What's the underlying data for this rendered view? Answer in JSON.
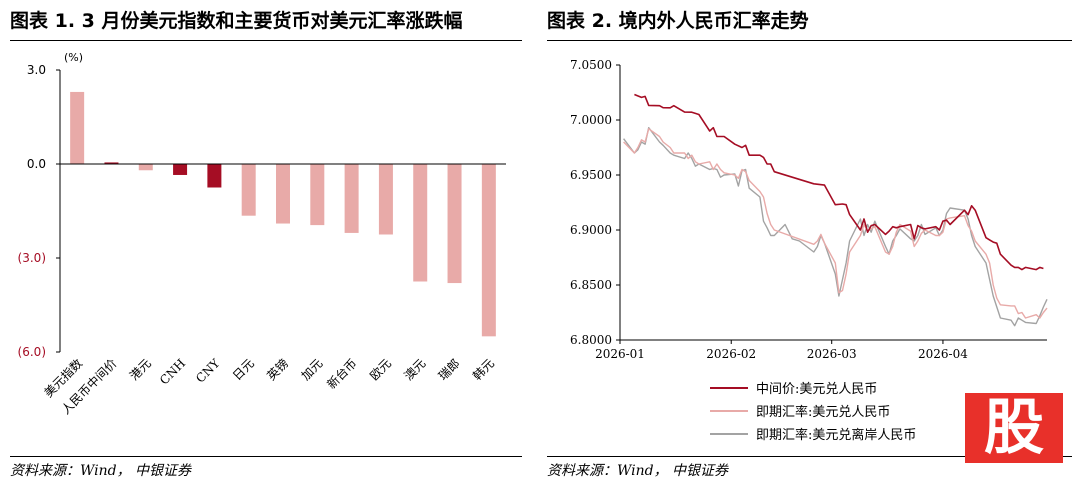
{
  "left_panel": {
    "title": "图表 1. 3 月份美元指数和主要货币对美元汇率涨跌幅",
    "source": "资料来源：Wind， 中银证券"
  },
  "right_panel": {
    "title": "图表 2. 境内外人民币汇率走势",
    "source": "资料来源：Wind， 中银证券"
  },
  "watermark": "股",
  "colors": {
    "dark_red": "#a50d24",
    "light_pink": "#e8aaa8",
    "grey": "#a3a3a3",
    "axis": "#000000"
  },
  "chart_data": [
    {
      "type": "bar",
      "unit_label": "(%)",
      "categories": [
        "美元指数",
        "人民币中间价",
        "港元",
        "CNH",
        "CNY",
        "日元",
        "英镑",
        "加元",
        "新台币",
        "欧元",
        "澳元",
        "瑞郎",
        "韩元"
      ],
      "values": [
        2.3,
        0.05,
        -0.2,
        -0.35,
        -0.75,
        -1.65,
        -1.9,
        -1.95,
        -2.2,
        -2.25,
        -3.75,
        -3.8,
        -5.5
      ],
      "bar_colors": [
        "light",
        "dark",
        "light",
        "dark",
        "dark",
        "light",
        "light",
        "light",
        "light",
        "light",
        "light",
        "light",
        "light"
      ],
      "yticks": [
        3.0,
        0.0,
        -3.0,
        -6.0
      ],
      "ytick_labels": [
        "3.0",
        "0.0",
        "(3.0)",
        "(6.0)"
      ],
      "ylim": [
        -6.0,
        3.0
      ]
    },
    {
      "type": "line",
      "xticks": [
        "2026-01",
        "2026-02",
        "2026-03",
        "2026-04"
      ],
      "xlim": [
        "2026-01-01",
        "2026-04-30"
      ],
      "yticks": [
        6.8,
        6.85,
        6.9,
        6.95,
        7.0,
        7.05
      ],
      "ytick_labels": [
        "6.8000",
        "6.8500",
        "6.9000",
        "6.9500",
        "7.0000",
        "7.0500"
      ],
      "ylim": [
        6.8,
        7.05
      ],
      "series": [
        {
          "name": "中间价:美元兑人民币",
          "color": "dark_red",
          "points": [
            [
              "2026-01-05",
              7.0232
            ],
            [
              "2026-01-07",
              7.0205
            ],
            [
              "2026-01-08",
              7.0215
            ],
            [
              "2026-01-09",
              7.0133
            ],
            [
              "2026-01-12",
              7.013
            ],
            [
              "2026-01-13",
              7.0112
            ],
            [
              "2026-01-15",
              7.0111
            ],
            [
              "2026-01-16",
              7.013
            ],
            [
              "2026-01-19",
              7.0072
            ],
            [
              "2026-01-21",
              7.0071
            ],
            [
              "2026-01-22",
              7.006
            ],
            [
              "2026-01-23",
              7.005
            ],
            [
              "2026-01-26",
              6.99
            ],
            [
              "2026-01-27",
              6.993
            ],
            [
              "2026-01-28",
              6.985
            ],
            [
              "2026-01-30",
              6.985
            ],
            [
              "2026-02-02",
              6.978
            ],
            [
              "2026-02-04",
              6.975
            ],
            [
              "2026-02-05",
              6.977
            ],
            [
              "2026-02-06",
              6.968
            ],
            [
              "2026-02-09",
              6.968
            ],
            [
              "2026-02-10",
              6.966
            ],
            [
              "2026-02-11",
              6.96
            ],
            [
              "2026-02-12",
              6.96
            ],
            [
              "2026-02-13",
              6.953
            ],
            [
              "2026-02-24",
              6.942
            ],
            [
              "2026-02-27",
              6.9408
            ],
            [
              "2026-03-02",
              6.923
            ],
            [
              "2026-03-04",
              6.9236
            ],
            [
              "2026-03-05",
              6.923
            ],
            [
              "2026-03-06",
              6.914
            ],
            [
              "2026-03-09",
              6.9
            ],
            [
              "2026-03-10",
              6.91
            ],
            [
              "2026-03-11",
              6.898
            ],
            [
              "2026-03-12",
              6.904
            ],
            [
              "2026-03-13",
              6.905
            ],
            [
              "2026-03-16",
              6.896
            ],
            [
              "2026-03-17",
              6.899
            ],
            [
              "2026-03-18",
              6.903
            ],
            [
              "2026-03-19",
              6.902
            ],
            [
              "2026-03-20",
              6.903
            ],
            [
              "2026-03-23",
              6.905
            ],
            [
              "2026-03-24",
              6.892
            ],
            [
              "2026-03-25",
              6.904
            ],
            [
              "2026-03-26",
              6.902
            ],
            [
              "2026-03-27",
              6.901
            ],
            [
              "2026-03-30",
              6.903
            ],
            [
              "2026-03-31",
              6.9
            ],
            [
              "2026-04-01",
              6.908
            ],
            [
              "2026-04-02",
              6.909
            ],
            [
              "2026-04-03",
              6.905
            ],
            [
              "2026-04-07",
              6.918
            ],
            [
              "2026-04-08",
              6.914
            ],
            [
              "2026-04-09",
              6.922
            ],
            [
              "2026-04-10",
              6.918
            ],
            [
              "2026-04-13",
              6.893
            ],
            [
              "2026-04-14",
              6.891
            ],
            [
              "2026-04-15",
              6.889
            ],
            [
              "2026-04-16",
              6.888
            ],
            [
              "2026-04-17",
              6.878
            ],
            [
              "2026-04-20",
              6.868
            ],
            [
              "2026-04-21",
              6.866
            ],
            [
              "2026-04-22",
              6.866
            ],
            [
              "2026-04-23",
              6.864
            ],
            [
              "2026-04-24",
              6.866
            ],
            [
              "2026-04-27",
              6.864
            ],
            [
              "2026-04-28",
              6.866
            ],
            [
              "2026-04-29",
              6.865
            ]
          ]
        },
        {
          "name": "即期汇率:美元兑人民币",
          "color": "light_pink",
          "points": [
            [
              "2026-01-02",
              6.98
            ],
            [
              "2026-01-05",
              6.97
            ],
            [
              "2026-01-06",
              6.975
            ],
            [
              "2026-01-07",
              6.982
            ],
            [
              "2026-01-08",
              6.98
            ],
            [
              "2026-01-09",
              6.992
            ],
            [
              "2026-01-12",
              6.985
            ],
            [
              "2026-01-13",
              6.98
            ],
            [
              "2026-01-15",
              6.975
            ],
            [
              "2026-01-16",
              6.97
            ],
            [
              "2026-01-19",
              6.97
            ],
            [
              "2026-01-20",
              6.965
            ],
            [
              "2026-01-21",
              6.968
            ],
            [
              "2026-01-22",
              6.962
            ],
            [
              "2026-01-23",
              6.96
            ],
            [
              "2026-01-26",
              6.962
            ],
            [
              "2026-01-27",
              6.955
            ],
            [
              "2026-01-28",
              6.96
            ],
            [
              "2026-01-29",
              6.955
            ],
            [
              "2026-01-30",
              6.952
            ],
            [
              "2026-02-02",
              6.95
            ],
            [
              "2026-02-03",
              6.947
            ],
            [
              "2026-02-04",
              6.955
            ],
            [
              "2026-02-05",
              6.953
            ],
            [
              "2026-02-06",
              6.945
            ],
            [
              "2026-02-09",
              6.935
            ],
            [
              "2026-02-10",
              6.93
            ],
            [
              "2026-02-11",
              6.915
            ],
            [
              "2026-02-12",
              6.905
            ],
            [
              "2026-02-13",
              6.9
            ],
            [
              "2026-02-24",
              6.887
            ],
            [
              "2026-02-25",
              6.89
            ],
            [
              "2026-02-26",
              6.896
            ],
            [
              "2026-02-27",
              6.888
            ],
            [
              "2026-03-02",
              6.87
            ],
            [
              "2026-03-03",
              6.843
            ],
            [
              "2026-03-04",
              6.845
            ],
            [
              "2026-03-05",
              6.86
            ],
            [
              "2026-03-06",
              6.88
            ],
            [
              "2026-03-09",
              6.895
            ],
            [
              "2026-03-10",
              6.905
            ],
            [
              "2026-03-11",
              6.899
            ],
            [
              "2026-03-12",
              6.901
            ],
            [
              "2026-03-13",
              6.903
            ],
            [
              "2026-03-16",
              6.88
            ],
            [
              "2026-03-17",
              6.878
            ],
            [
              "2026-03-18",
              6.885
            ],
            [
              "2026-03-19",
              6.898
            ],
            [
              "2026-03-20",
              6.905
            ],
            [
              "2026-03-23",
              6.899
            ],
            [
              "2026-03-24",
              6.885
            ],
            [
              "2026-03-25",
              6.89
            ],
            [
              "2026-03-26",
              6.897
            ],
            [
              "2026-03-27",
              6.9
            ],
            [
              "2026-03-30",
              6.895
            ],
            [
              "2026-03-31",
              6.895
            ],
            [
              "2026-04-01",
              6.898
            ],
            [
              "2026-04-02",
              6.91
            ],
            [
              "2026-04-03",
              6.911
            ],
            [
              "2026-04-07",
              6.913
            ],
            [
              "2026-04-08",
              6.904
            ],
            [
              "2026-04-09",
              6.899
            ],
            [
              "2026-04-10",
              6.89
            ],
            [
              "2026-04-13",
              6.878
            ],
            [
              "2026-04-14",
              6.87
            ],
            [
              "2026-04-15",
              6.85
            ],
            [
              "2026-04-16",
              6.838
            ],
            [
              "2026-04-17",
              6.832
            ],
            [
              "2026-04-20",
              6.831
            ],
            [
              "2026-04-21",
              6.831
            ],
            [
              "2026-04-22",
              6.824
            ],
            [
              "2026-04-23",
              6.825
            ],
            [
              "2026-04-24",
              6.82
            ],
            [
              "2026-04-27",
              6.823
            ],
            [
              "2026-04-28",
              6.82
            ],
            [
              "2026-04-29",
              6.825
            ],
            [
              "2026-04-30",
              6.829
            ]
          ]
        },
        {
          "name": "即期汇率:美元兑离岸人民币",
          "color": "grey",
          "points": [
            [
              "2026-01-02",
              6.983
            ],
            [
              "2026-01-05",
              6.97
            ],
            [
              "2026-01-06",
              6.973
            ],
            [
              "2026-01-07",
              6.98
            ],
            [
              "2026-01-08",
              6.978
            ],
            [
              "2026-01-09",
              6.993
            ],
            [
              "2026-01-12",
              6.98
            ],
            [
              "2026-01-13",
              6.977
            ],
            [
              "2026-01-15",
              6.97
            ],
            [
              "2026-01-16",
              6.968
            ],
            [
              "2026-01-19",
              6.965
            ],
            [
              "2026-01-20",
              6.97
            ],
            [
              "2026-01-21",
              6.965
            ],
            [
              "2026-01-22",
              6.958
            ],
            [
              "2026-01-23",
              6.96
            ],
            [
              "2026-01-26",
              6.955
            ],
            [
              "2026-01-27",
              6.956
            ],
            [
              "2026-01-28",
              6.955
            ],
            [
              "2026-01-29",
              6.948
            ],
            [
              "2026-01-30",
              6.95
            ],
            [
              "2026-02-02",
              6.951
            ],
            [
              "2026-02-03",
              6.94
            ],
            [
              "2026-02-04",
              6.954
            ],
            [
              "2026-02-05",
              6.955
            ],
            [
              "2026-02-06",
              6.938
            ],
            [
              "2026-02-09",
              6.93
            ],
            [
              "2026-02-10",
              6.908
            ],
            [
              "2026-02-11",
              6.902
            ],
            [
              "2026-02-12",
              6.895
            ],
            [
              "2026-02-13",
              6.895
            ],
            [
              "2026-02-16",
              6.905
            ],
            [
              "2026-02-18",
              6.892
            ],
            [
              "2026-02-20",
              6.89
            ],
            [
              "2026-02-24",
              6.88
            ],
            [
              "2026-02-25",
              6.885
            ],
            [
              "2026-02-26",
              6.895
            ],
            [
              "2026-02-27",
              6.888
            ],
            [
              "2026-03-02",
              6.86
            ],
            [
              "2026-03-03",
              6.84
            ],
            [
              "2026-03-04",
              6.855
            ],
            [
              "2026-03-05",
              6.87
            ],
            [
              "2026-03-06",
              6.89
            ],
            [
              "2026-03-09",
              6.91
            ],
            [
              "2026-03-10",
              6.895
            ],
            [
              "2026-03-11",
              6.905
            ],
            [
              "2026-03-12",
              6.898
            ],
            [
              "2026-03-13",
              6.908
            ],
            [
              "2026-03-16",
              6.885
            ],
            [
              "2026-03-17",
              6.878
            ],
            [
              "2026-03-18",
              6.89
            ],
            [
              "2026-03-19",
              6.895
            ],
            [
              "2026-03-20",
              6.901
            ],
            [
              "2026-03-23",
              6.892
            ],
            [
              "2026-03-24",
              6.89
            ],
            [
              "2026-03-25",
              6.895
            ],
            [
              "2026-03-26",
              6.905
            ],
            [
              "2026-03-27",
              6.896
            ],
            [
              "2026-03-30",
              6.902
            ],
            [
              "2026-03-31",
              6.895
            ],
            [
              "2026-04-01",
              6.9
            ],
            [
              "2026-04-02",
              6.915
            ],
            [
              "2026-04-03",
              6.92
            ],
            [
              "2026-04-07",
              6.918
            ],
            [
              "2026-04-08",
              6.91
            ],
            [
              "2026-04-09",
              6.895
            ],
            [
              "2026-04-10",
              6.885
            ],
            [
              "2026-04-13",
              6.87
            ],
            [
              "2026-04-14",
              6.855
            ],
            [
              "2026-04-15",
              6.84
            ],
            [
              "2026-04-16",
              6.83
            ],
            [
              "2026-04-17",
              6.82
            ],
            [
              "2026-04-20",
              6.818
            ],
            [
              "2026-04-21",
              6.813
            ],
            [
              "2026-04-22",
              6.82
            ],
            [
              "2026-04-23",
              6.818
            ],
            [
              "2026-04-24",
              6.816
            ],
            [
              "2026-04-27",
              6.815
            ],
            [
              "2026-04-28",
              6.822
            ],
            [
              "2026-04-29",
              6.83
            ],
            [
              "2026-04-30",
              6.837
            ]
          ]
        }
      ]
    }
  ]
}
